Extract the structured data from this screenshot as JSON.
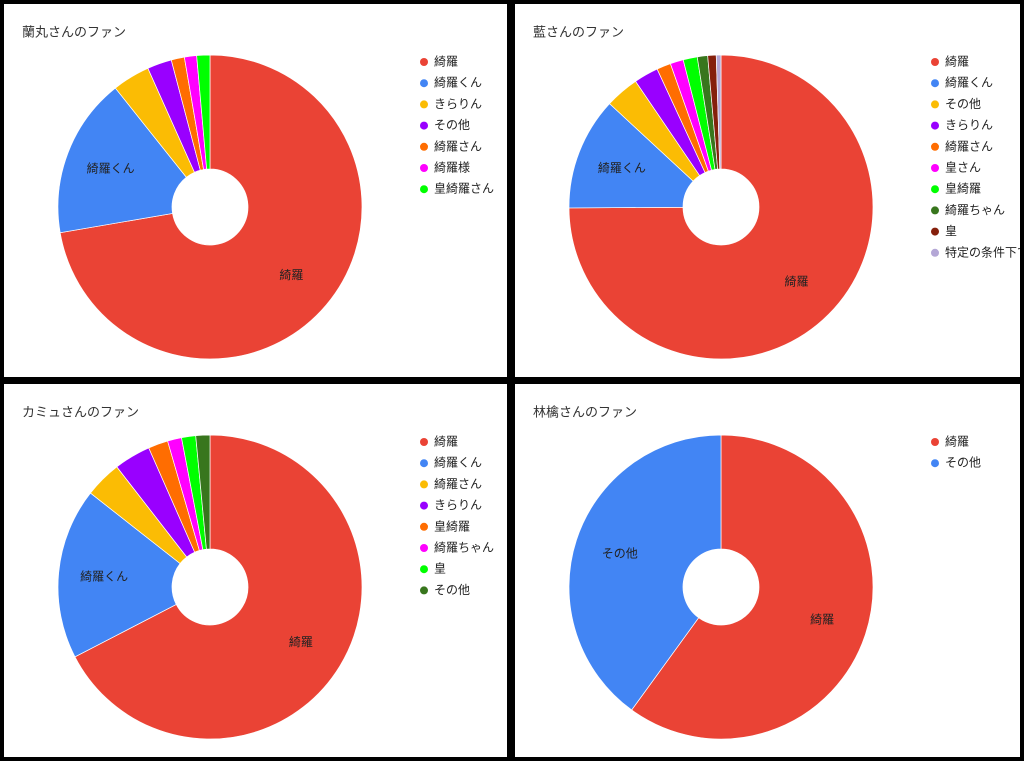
{
  "chart_data": [
    {
      "type": "pie",
      "donut": true,
      "title": "蘭丸さんのファン",
      "categories": [
        "綺羅",
        "綺羅くん",
        "きらりん",
        "その他",
        "綺羅さん",
        "綺羅様",
        "皇綺羅さん"
      ],
      "values": [
        72.3,
        17,
        4,
        2.6,
        1.4,
        1.3,
        1.4
      ],
      "colors": [
        "#ea4335",
        "#4285f4",
        "#fbbc04",
        "#9900ff",
        "#ff6d01",
        "#ff00ff",
        "#00ff00"
      ]
    },
    {
      "type": "pie",
      "donut": true,
      "title": "藍さんのファン",
      "categories": [
        "綺羅",
        "綺羅くん",
        "その他",
        "きらりん",
        "綺羅さん",
        "皇さん",
        "皇綺羅",
        "綺羅ちゃん",
        "皇",
        "特定の条件下で発動"
      ],
      "values": [
        74.9,
        12,
        3.6,
        2.6,
        1.5,
        1.4,
        1.5,
        1.1,
        0.9,
        0.5
      ],
      "colors": [
        "#ea4335",
        "#4285f4",
        "#fbbc04",
        "#9900ff",
        "#ff6d01",
        "#ff00ff",
        "#00ff00",
        "#38761d",
        "#85200c",
        "#b4a7d6"
      ]
    },
    {
      "type": "pie",
      "donut": true,
      "title": "カミュさんのファン",
      "categories": [
        "綺羅",
        "綺羅くん",
        "綺羅さん",
        "きらりん",
        "皇綺羅",
        "綺羅ちゃん",
        "皇",
        "その他"
      ],
      "values": [
        67.4,
        18.2,
        3.9,
        3.9,
        2.1,
        1.5,
        1.5,
        1.5
      ],
      "colors": [
        "#ea4335",
        "#4285f4",
        "#fbbc04",
        "#9900ff",
        "#ff6d01",
        "#ff00ff",
        "#00ff00",
        "#38761d"
      ]
    },
    {
      "type": "pie",
      "donut": true,
      "title": "林檎さんのファン",
      "categories": [
        "綺羅",
        "その他"
      ],
      "values": [
        60,
        40
      ],
      "colors": [
        "#ea4335",
        "#4285f4"
      ]
    }
  ]
}
